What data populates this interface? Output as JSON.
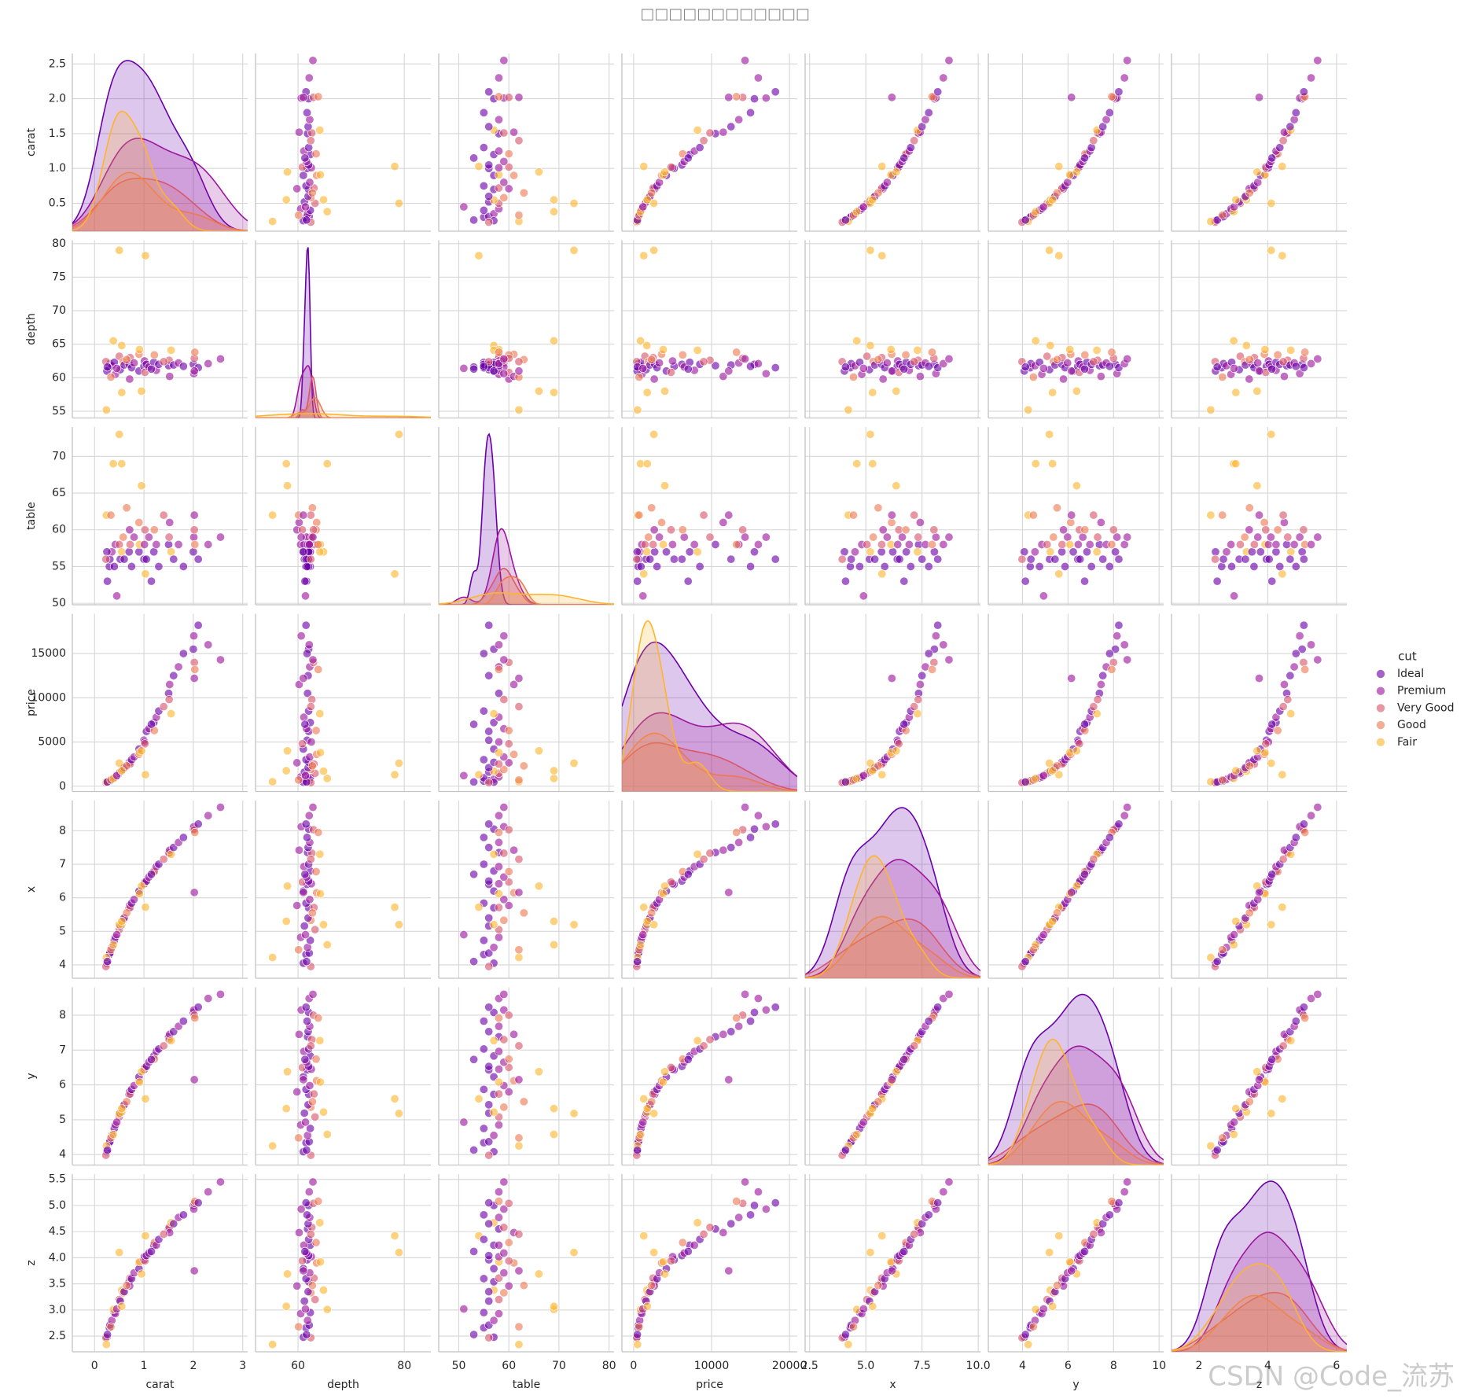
{
  "chart_data": {
    "type": "pairplot",
    "title": "□□□□□□□□□□□□",
    "watermark": "CSDN @Code_流苏",
    "hue": {
      "title": "cut",
      "levels": [
        {
          "name": "Ideal",
          "color": "#6a00a8"
        },
        {
          "name": "Premium",
          "color": "#9c179e"
        },
        {
          "name": "Very Good",
          "color": "#d8576b"
        },
        {
          "name": "Good",
          "color": "#ed7953"
        },
        {
          "name": "Fair",
          "color": "#fdb42f"
        }
      ]
    },
    "grid": true,
    "variables": [
      {
        "name": "carat",
        "xlim": [
          -0.45,
          3.1
        ],
        "xticks": [
          0,
          1,
          2,
          3
        ],
        "ylim": [
          0.1,
          2.65
        ],
        "yticks": [
          0.5,
          {
            "value": 1,
            "label": "1.0"
          },
          1.5,
          {
            "value": 2,
            "label": "2.0"
          },
          2.5
        ]
      },
      {
        "name": "depth",
        "xlim": [
          52,
          85
        ],
        "xticks": [
          60,
          80
        ],
        "ylim": [
          54,
          80.5
        ],
        "yticks": [
          55,
          60,
          65,
          70,
          75,
          80
        ]
      },
      {
        "name": "table",
        "xlim": [
          46,
          81
        ],
        "xticks": [
          50,
          60,
          70,
          80
        ],
        "ylim": [
          49.8,
          74
        ],
        "yticks": [
          50,
          55,
          60,
          65,
          70
        ]
      },
      {
        "name": "price",
        "xlim": [
          -1500,
          21000
        ],
        "xticks": [
          0,
          10000,
          20000
        ],
        "ylim": [
          -600,
          19500
        ],
        "yticks": [
          0,
          5000,
          10000,
          15000
        ]
      },
      {
        "name": "x",
        "xlim": [
          2.3,
          10.1
        ],
        "xticks": [
          2.5,
          {
            "value": 5,
            "label": "5.0"
          },
          7.5,
          {
            "value": 10,
            "label": "10.0"
          }
        ],
        "ylim": [
          3.6,
          8.9
        ],
        "yticks": [
          4,
          5,
          6,
          7,
          8
        ]
      },
      {
        "name": "y",
        "xlim": [
          2.5,
          10.2
        ],
        "xticks": [
          4,
          6,
          8,
          10
        ],
        "ylim": [
          3.7,
          8.8
        ],
        "yticks": [
          4,
          5,
          6,
          7,
          8
        ]
      },
      {
        "name": "z",
        "xlim": [
          1.2,
          6.3
        ],
        "xticks": [
          2,
          4,
          6
        ],
        "ylim": [
          2.2,
          5.6
        ],
        "yticks": [
          2.5,
          {
            "value": 3,
            "label": "3.0"
          },
          3.5,
          {
            "value": 4,
            "label": "4.0"
          },
          4.5,
          {
            "value": 5,
            "label": "5.0"
          },
          5.5
        ]
      }
    ],
    "rows": [
      [
        0.3,
        61.5,
        55,
        580,
        4.31,
        4.34,
        2.66,
        "Ideal"
      ],
      [
        0.31,
        62.1,
        56,
        620,
        4.35,
        4.37,
        2.71,
        "Ideal"
      ],
      [
        0.35,
        61.8,
        57,
        780,
        4.52,
        4.55,
        2.8,
        "Premium"
      ],
      [
        0.4,
        62.3,
        55,
        950,
        4.73,
        4.75,
        2.95,
        "Ideal"
      ],
      [
        0.42,
        60.5,
        58,
        1050,
        4.82,
        4.85,
        2.93,
        "Premium"
      ],
      [
        0.5,
        63.2,
        58,
        1450,
        5.05,
        5.08,
        3.2,
        "Very Good"
      ],
      [
        0.52,
        61.2,
        56,
        1600,
        5.16,
        5.19,
        3.17,
        "Ideal"
      ],
      [
        0.55,
        64.8,
        57,
        1700,
        5.2,
        5.22,
        3.38,
        "Fair"
      ],
      [
        0.58,
        62.4,
        59,
        1900,
        5.33,
        5.36,
        3.33,
        "Good"
      ],
      [
        0.6,
        61.9,
        56,
        2100,
        5.4,
        5.43,
        3.35,
        "Ideal"
      ],
      [
        0.7,
        62.0,
        57,
        2700,
        5.7,
        5.73,
        3.54,
        "Ideal"
      ],
      [
        0.71,
        59.8,
        60,
        2650,
        5.77,
        5.8,
        3.46,
        "Premium"
      ],
      [
        0.72,
        63.0,
        58,
        2500,
        5.71,
        5.74,
        3.61,
        "Very Good"
      ],
      [
        0.75,
        61.5,
        55,
        3000,
        5.84,
        5.87,
        3.6,
        "Ideal"
      ],
      [
        0.8,
        62.2,
        59,
        3300,
        5.95,
        5.98,
        3.71,
        "Premium"
      ],
      [
        0.9,
        63.5,
        61,
        3600,
        6.15,
        6.12,
        3.9,
        "Good"
      ],
      [
        0.9,
        61.0,
        57,
        4200,
        6.2,
        6.23,
        3.79,
        "Ideal"
      ],
      [
        0.91,
        64.2,
        58,
        3800,
        6.12,
        6.08,
        3.92,
        "Fair"
      ],
      [
        1.0,
        61.7,
        56,
        5200,
        6.4,
        6.43,
        3.96,
        "Ideal"
      ],
      [
        1.01,
        62.5,
        58,
        5000,
        6.42,
        6.45,
        4.02,
        "Premium"
      ],
      [
        1.02,
        60.8,
        60,
        4800,
        6.47,
        6.5,
        3.94,
        "Very Good"
      ],
      [
        1.03,
        78.2,
        54,
        1300,
        5.72,
        5.6,
        4.42,
        "Fair"
      ],
      [
        1.05,
        62.0,
        56,
        6200,
        6.5,
        6.53,
        4.04,
        "Ideal"
      ],
      [
        1.1,
        61.6,
        59,
        6500,
        6.62,
        6.65,
        4.09,
        "Premium"
      ],
      [
        1.2,
        62.3,
        57,
        7200,
        6.8,
        6.83,
        4.24,
        "Ideal"
      ],
      [
        1.21,
        63.4,
        60,
        6300,
        6.78,
        6.74,
        4.29,
        "Good"
      ],
      [
        1.25,
        61.1,
        58,
        7800,
        6.93,
        6.96,
        4.24,
        "Premium"
      ],
      [
        1.3,
        62.0,
        55,
        8500,
        7.0,
        7.03,
        4.35,
        "Ideal"
      ],
      [
        1.5,
        61.8,
        58,
        10500,
        7.35,
        7.38,
        4.55,
        "Ideal"
      ],
      [
        1.51,
        62.6,
        59,
        9800,
        7.33,
        7.3,
        4.58,
        "Very Good"
      ],
      [
        1.52,
        60.2,
        61,
        11500,
        7.42,
        7.45,
        4.48,
        "Premium"
      ],
      [
        1.55,
        64.1,
        57,
        8200,
        7.3,
        7.27,
        4.67,
        "Fair"
      ],
      [
        1.6,
        61.9,
        56,
        12500,
        7.5,
        7.53,
        4.65,
        "Ideal"
      ],
      [
        1.7,
        62.2,
        58,
        13500,
        7.65,
        7.68,
        4.77,
        "Premium"
      ],
      [
        2.0,
        62.0,
        57,
        15500,
        8.05,
        8.08,
        5.0,
        "Ideal"
      ],
      [
        2.01,
        60.6,
        59,
        17000,
        8.12,
        8.15,
        4.93,
        "Premium"
      ],
      [
        2.02,
        62.9,
        60,
        14000,
        8.03,
        8.0,
        5.04,
        "Very Good"
      ],
      [
        2.03,
        63.8,
        58,
        13200,
        7.95,
        7.92,
        5.08,
        "Good"
      ],
      [
        2.1,
        61.5,
        56,
        18200,
        8.2,
        8.23,
        5.05,
        "Ideal"
      ],
      [
        2.3,
        62.1,
        58,
        16000,
        8.45,
        8.48,
        5.26,
        "Premium"
      ],
      [
        2.55,
        62.8,
        59,
        14300,
        8.7,
        8.6,
        5.45,
        "Premium"
      ],
      [
        0.25,
        61.0,
        57,
        450,
        4.05,
        4.08,
        2.48,
        "Ideal"
      ],
      [
        0.23,
        62.4,
        56,
        400,
        3.95,
        3.98,
        2.47,
        "Very Good"
      ],
      [
        0.24,
        55.2,
        62,
        500,
        4.22,
        4.25,
        2.34,
        "Fair"
      ],
      [
        0.26,
        61.6,
        53,
        480,
        4.1,
        4.13,
        2.53,
        "Ideal"
      ],
      [
        0.33,
        60.1,
        62,
        700,
        4.45,
        4.48,
        2.68,
        "Good"
      ],
      [
        0.5,
        79.0,
        73,
        2600,
        5.2,
        5.18,
        4.1,
        "Fair"
      ],
      [
        0.38,
        65.5,
        69,
        880,
        4.6,
        4.58,
        3.01,
        "Fair"
      ],
      [
        0.45,
        61.4,
        51,
        1200,
        4.9,
        4.93,
        3.02,
        "Premium"
      ],
      [
        0.65,
        62.7,
        63,
        2300,
        5.55,
        5.52,
        3.47,
        "Good"
      ],
      [
        0.95,
        58.0,
        66,
        4000,
        6.35,
        6.38,
        3.69,
        "Fair"
      ],
      [
        1.15,
        61.3,
        53,
        7000,
        6.7,
        6.73,
        4.12,
        "Ideal"
      ],
      [
        1.4,
        62.4,
        62,
        9000,
        7.15,
        7.12,
        4.45,
        "Very Good"
      ],
      [
        1.8,
        61.7,
        55,
        15000,
        7.8,
        7.83,
        4.82,
        "Ideal"
      ],
      [
        2.02,
        61.0,
        62,
        12200,
        6.16,
        6.15,
        3.75,
        "Premium"
      ],
      [
        0.55,
        57.8,
        69,
        1750,
        5.3,
        5.32,
        3.07,
        "Fair"
      ]
    ]
  }
}
